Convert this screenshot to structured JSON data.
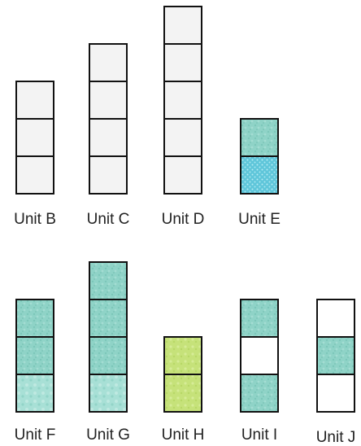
{
  "colors": {
    "blank": "#f3f3f3",
    "white": "#ffffff",
    "teal": "#8fd3c7",
    "teal_light": "#a8e0d6",
    "blue_dotted": "#6ccfe0",
    "lime": "#c6e27a",
    "border": "#111111"
  },
  "units": [
    {
      "label": "Unit B",
      "cells": [
        "blank",
        "blank",
        "blank"
      ]
    },
    {
      "label": "Unit C",
      "cells": [
        "blank",
        "blank",
        "blank",
        "blank"
      ]
    },
    {
      "label": "Unit D",
      "cells": [
        "blank",
        "blank",
        "blank",
        "blank",
        "blank"
      ]
    },
    {
      "label": "Unit E",
      "cells": [
        "teal",
        "blue_dotted"
      ]
    },
    {
      "label": "Unit F",
      "cells": [
        "teal",
        "teal",
        "teal_light"
      ]
    },
    {
      "label": "Unit G",
      "cells": [
        "teal",
        "teal",
        "teal",
        "teal_light"
      ]
    },
    {
      "label": "Unit H",
      "cells": [
        "lime",
        "lime"
      ]
    },
    {
      "label": "Unit I",
      "cells": [
        "teal",
        "white",
        "teal"
      ]
    },
    {
      "label": "Unit J",
      "cells": [
        "white",
        "teal",
        "white"
      ]
    }
  ]
}
